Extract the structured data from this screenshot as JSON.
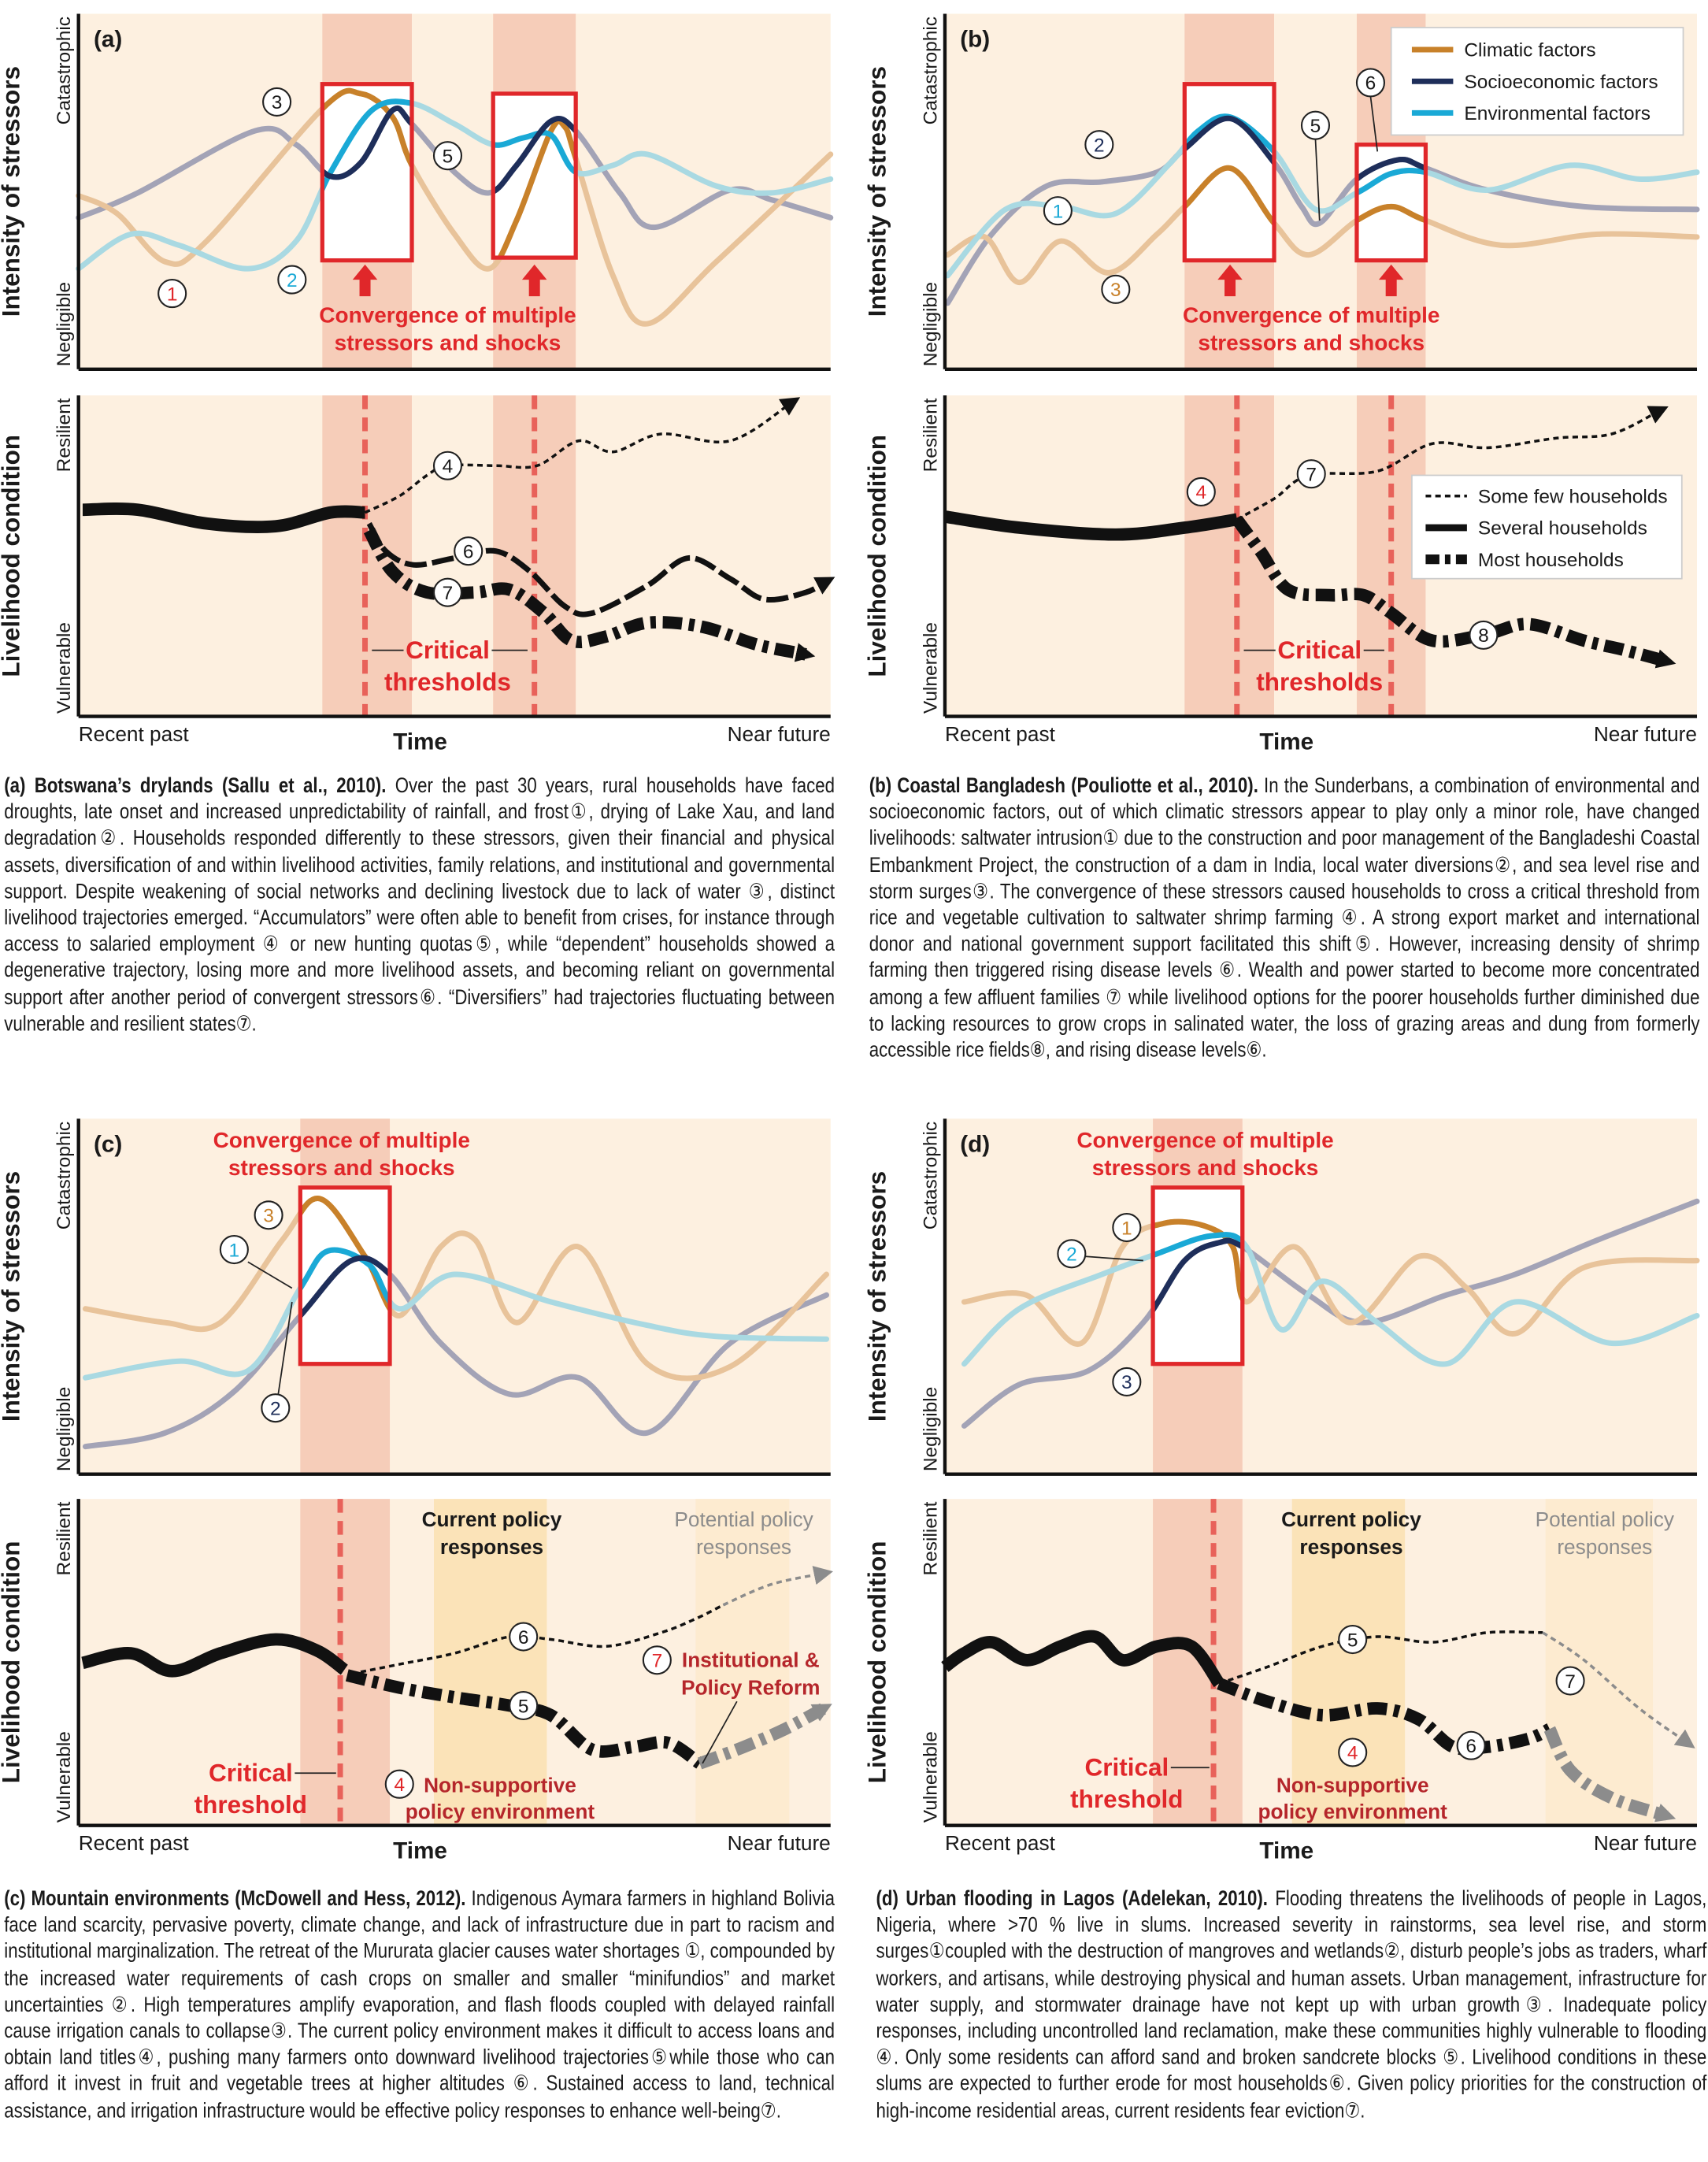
{
  "colors": {
    "background": "#fdf0e0",
    "convergence_band": "#f6cdb9",
    "current_policy_band": "#fbe3b8",
    "potential_policy_band": "#fdebd0",
    "highlight_red": "#e0272a",
    "threshold_dash": "#e8625a",
    "climatic": "#c8812a",
    "socioeconomic": "#1e2e5a",
    "environmental": "#1aa9d6",
    "climatic_faded": "#e8c39a",
    "socioeconomic_faded": "#a3a3b6",
    "environmental_faded": "#a9d9e2",
    "policy_text": "#b5262b",
    "potential_text": "#8c8c8c"
  },
  "axes": {
    "stressors": {
      "title": "Intensity of stressors",
      "top": "Catastrophic",
      "bottom": "Negligible"
    },
    "livelihood": {
      "title": "Livelihood condition",
      "top": "Resilient",
      "bottom": "Vulnerable"
    },
    "time": {
      "start": "Recent past",
      "title": "Time",
      "end": "Near future"
    }
  },
  "legend_stressors": [
    {
      "label": "Climatic factors",
      "color": "#c8812a"
    },
    {
      "label": "Socioeconomic factors",
      "color": "#1e2e5a"
    },
    {
      "label": "Environmental factors",
      "color": "#1aa9d6"
    }
  ],
  "legend_households": [
    {
      "label": "Some few households",
      "style": "dotted"
    },
    {
      "label": "Several households",
      "style": "solid"
    },
    {
      "label": "Most households",
      "style": "dash-dot"
    }
  ],
  "panels": [
    {
      "letter": "(a)",
      "convergence_label": [
        "Convergence of multiple",
        "stressors and shocks"
      ],
      "threshold_label": [
        "Critical",
        "thresholds"
      ],
      "stress_callouts": [
        "1",
        "2",
        "3",
        "5"
      ],
      "livelihood_callouts": [
        "4",
        "6",
        "7"
      ],
      "caption": {
        "title": "(a) Botswana’s drylands (Sallu et al., 2010).",
        "body": "Over the past 30 years, rural households have faced droughts, late onset and increased unpredictability of rainfall, and frost①, drying of Lake Xau, and land degradation②. Households responded differently to these stressors, given their financial and physical assets, diversification of and within livelihood activities, family relations, and institutional and governmental support. Despite weakening of social networks and declining livestock due to lack of water ③, distinct livelihood trajectories emerged. “Accumulators” were often able to benefit from crises, for instance through access to salaried employment ④ or new hunting quotas⑤, while “dependent” households showed a degenerative trajectory, losing more and more livelihood assets, and becoming reliant on governmental support after another period of convergent stressors⑥. “Diversifiers” had trajectories fluctuating between vulnerable and resilient states⑦."
      }
    },
    {
      "letter": "(b)",
      "convergence_label": [
        "Convergence of multiple",
        "stressors and shocks"
      ],
      "threshold_label": [
        "Critical",
        "thresholds"
      ],
      "stress_callouts": [
        "1",
        "2",
        "3",
        "5",
        "6"
      ],
      "livelihood_callouts": [
        "4",
        "7",
        "8"
      ],
      "caption": {
        "title": "(b) Coastal Bangladesh (Pouliotte et al., 2010).",
        "body": "In the Sunderbans, a combination of environmental and socioeconomic factors, out of which climatic stressors appear to play only a minor role, have changed livelihoods: saltwater intrusion① due to the construction and poor management of the Bangladeshi Coastal Embankment Project, the construction of a dam in India, local water diversions②, and sea level rise and storm surges③. The convergence of these stressors caused households to cross a critical threshold from rice and vegetable cultivation to saltwater shrimp farming ④. A strong export market and international donor and national government support facilitated this shift⑤. However, increasing density of shrimp farming then triggered rising disease levels ⑥. Wealth and power started to become more concentrated among a few affluent families ⑦ while livelihood options for the poorer households further diminished due to lacking resources to grow crops in salinated water, the loss of grazing areas and dung from formerly accessible rice fields⑧, and rising disease levels⑥."
      }
    },
    {
      "letter": "(c)",
      "convergence_label": [
        "Convergence of multiple",
        "stressors and shocks"
      ],
      "threshold_label": [
        "Critical",
        "threshold"
      ],
      "current_policy_label": [
        "Current policy",
        "responses"
      ],
      "potential_policy_label": [
        "Potential policy",
        "responses"
      ],
      "reform_label": [
        "Institutional &",
        "Policy Reform"
      ],
      "nonsupportive_label": [
        "Non-supportive",
        "policy environment"
      ],
      "stress_callouts": [
        "3",
        "1",
        "2"
      ],
      "livelihood_callouts": [
        "6",
        "5",
        "7",
        "4"
      ],
      "caption": {
        "title": "(c) Mountain environments (McDowell and Hess, 2012).",
        "body": "Indigenous Aymara farmers in highland Bolivia face land scarcity, pervasive poverty, climate change, and lack of infrastructure due in part to racism and institutional marginalization. The retreat of the Mururata glacier causes water shortages ①, compounded by the increased water requirements of cash crops on smaller and smaller “minifundios” and market uncertainties ②. High temperatures amplify evaporation, and flash floods coupled with delayed rainfall cause irrigation canals to collapse③. The current policy environment makes it difficult to access loans and obtain land titles④, pushing many farmers onto downward livelihood trajectories⑤while those who can afford it invest in fruit and vegetable trees at higher altitudes ⑥. Sustained access to land, technical assistance, and irrigation infrastructure would be effective policy responses to enhance well-being⑦."
      }
    },
    {
      "letter": "(d)",
      "convergence_label": [
        "Convergence of multiple",
        "stressors and shocks"
      ],
      "threshold_label": [
        "Critical",
        "threshold"
      ],
      "current_policy_label": [
        "Current policy",
        "responses"
      ],
      "potential_policy_label": [
        "Potential policy",
        "responses"
      ],
      "nonsupportive_label": [
        "Non-supportive",
        "policy environment"
      ],
      "stress_callouts": [
        "1",
        "2",
        "3"
      ],
      "livelihood_callouts": [
        "5",
        "7",
        "4",
        "6"
      ],
      "caption": {
        "title": "(d) Urban flooding in Lagos (Adelekan, 2010).",
        "body": "Flooding threatens the livelihoods of people in Lagos, Nigeria, where >70 % live in slums. Increased severity in rainstorms, sea level rise, and storm surges①coupled with the destruction of mangroves and wetlands②, disturb people’s jobs as traders, wharf workers, and artisans, while destroying physical and human assets. Urban management, infrastructure for water supply, and stormwater drainage have not kept up with urban growth③. Inadequate policy responses, including uncontrolled land reclamation, make these communities highly vulnerable to flooding ④. Only some residents can afford sand and broken sandcrete blocks ⑤. Livelihood conditions in these slums are expected to further erode for most households⑥. Given policy priorities for the construction of high-income residential areas, current residents fear eviction⑦."
      }
    }
  ]
}
